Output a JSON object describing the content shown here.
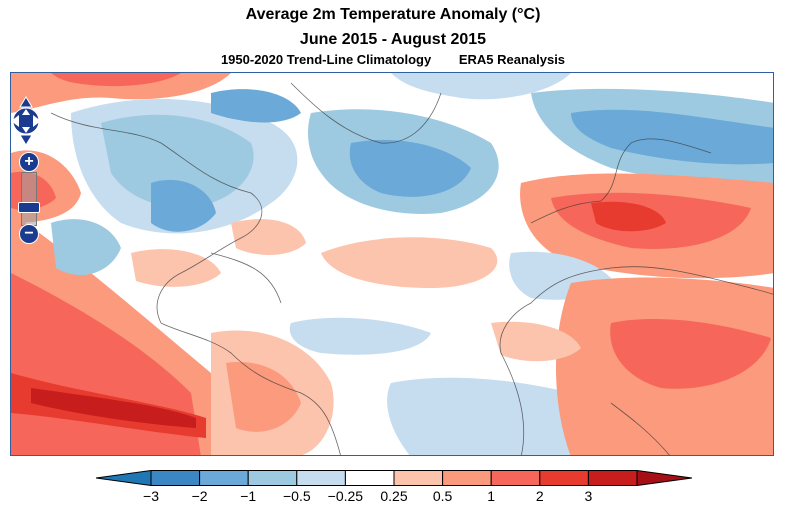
{
  "title": {
    "line1": "Average 2m Temperature Anomaly (°C)",
    "line2": "June 2015 - August 2015",
    "climatology": "1950-2020 Trend-Line Climatology",
    "source": "ERA5 Reanalysis"
  },
  "controls": {
    "pan_icon": "pan-arrows-icon",
    "zoom_in_label": "+",
    "zoom_out_label": "−"
  },
  "colorbar": {
    "ticks": [
      "−3",
      "−2",
      "−1",
      "−0.5",
      "−0.25",
      "0.25",
      "0.5",
      "1",
      "2",
      "3"
    ],
    "colors": [
      "#1f78b4",
      "#3a87c4",
      "#6aa9d8",
      "#9ecae1",
      "#c6dcef",
      "#ffffff",
      "#fcc3ad",
      "#fb9a7c",
      "#f6665a",
      "#e63b2e",
      "#c81d1d",
      "#a50f15"
    ]
  }
}
